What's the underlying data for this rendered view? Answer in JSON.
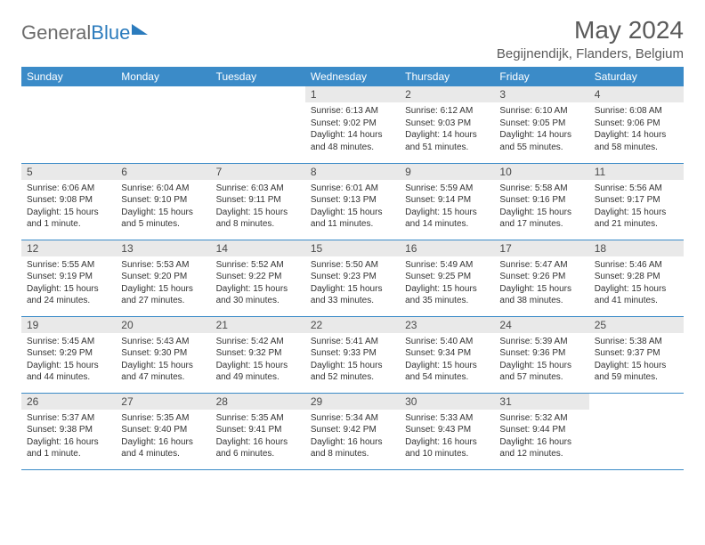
{
  "logo": {
    "part1": "General",
    "part2": "Blue"
  },
  "title": "May 2024",
  "location": "Begijnendijk, Flanders, Belgium",
  "colors": {
    "header_bg": "#3b8bc8",
    "header_text": "#ffffff",
    "daynum_bg": "#e9e9e9",
    "rule": "#3b8bc8",
    "body_text": "#333333",
    "title_text": "#5a5a5a",
    "logo_gray": "#6b6b6b",
    "logo_blue": "#2b7bbd",
    "page_bg": "#ffffff"
  },
  "weekdays": [
    "Sunday",
    "Monday",
    "Tuesday",
    "Wednesday",
    "Thursday",
    "Friday",
    "Saturday"
  ],
  "weeks": [
    [
      {
        "empty": true
      },
      {
        "empty": true
      },
      {
        "empty": true
      },
      {
        "n": "1",
        "sr": "Sunrise: 6:13 AM",
        "ss": "Sunset: 9:02 PM",
        "dl": "Daylight: 14 hours and 48 minutes."
      },
      {
        "n": "2",
        "sr": "Sunrise: 6:12 AM",
        "ss": "Sunset: 9:03 PM",
        "dl": "Daylight: 14 hours and 51 minutes."
      },
      {
        "n": "3",
        "sr": "Sunrise: 6:10 AM",
        "ss": "Sunset: 9:05 PM",
        "dl": "Daylight: 14 hours and 55 minutes."
      },
      {
        "n": "4",
        "sr": "Sunrise: 6:08 AM",
        "ss": "Sunset: 9:06 PM",
        "dl": "Daylight: 14 hours and 58 minutes."
      }
    ],
    [
      {
        "n": "5",
        "sr": "Sunrise: 6:06 AM",
        "ss": "Sunset: 9:08 PM",
        "dl": "Daylight: 15 hours and 1 minute."
      },
      {
        "n": "6",
        "sr": "Sunrise: 6:04 AM",
        "ss": "Sunset: 9:10 PM",
        "dl": "Daylight: 15 hours and 5 minutes."
      },
      {
        "n": "7",
        "sr": "Sunrise: 6:03 AM",
        "ss": "Sunset: 9:11 PM",
        "dl": "Daylight: 15 hours and 8 minutes."
      },
      {
        "n": "8",
        "sr": "Sunrise: 6:01 AM",
        "ss": "Sunset: 9:13 PM",
        "dl": "Daylight: 15 hours and 11 minutes."
      },
      {
        "n": "9",
        "sr": "Sunrise: 5:59 AM",
        "ss": "Sunset: 9:14 PM",
        "dl": "Daylight: 15 hours and 14 minutes."
      },
      {
        "n": "10",
        "sr": "Sunrise: 5:58 AM",
        "ss": "Sunset: 9:16 PM",
        "dl": "Daylight: 15 hours and 17 minutes."
      },
      {
        "n": "11",
        "sr": "Sunrise: 5:56 AM",
        "ss": "Sunset: 9:17 PM",
        "dl": "Daylight: 15 hours and 21 minutes."
      }
    ],
    [
      {
        "n": "12",
        "sr": "Sunrise: 5:55 AM",
        "ss": "Sunset: 9:19 PM",
        "dl": "Daylight: 15 hours and 24 minutes."
      },
      {
        "n": "13",
        "sr": "Sunrise: 5:53 AM",
        "ss": "Sunset: 9:20 PM",
        "dl": "Daylight: 15 hours and 27 minutes."
      },
      {
        "n": "14",
        "sr": "Sunrise: 5:52 AM",
        "ss": "Sunset: 9:22 PM",
        "dl": "Daylight: 15 hours and 30 minutes."
      },
      {
        "n": "15",
        "sr": "Sunrise: 5:50 AM",
        "ss": "Sunset: 9:23 PM",
        "dl": "Daylight: 15 hours and 33 minutes."
      },
      {
        "n": "16",
        "sr": "Sunrise: 5:49 AM",
        "ss": "Sunset: 9:25 PM",
        "dl": "Daylight: 15 hours and 35 minutes."
      },
      {
        "n": "17",
        "sr": "Sunrise: 5:47 AM",
        "ss": "Sunset: 9:26 PM",
        "dl": "Daylight: 15 hours and 38 minutes."
      },
      {
        "n": "18",
        "sr": "Sunrise: 5:46 AM",
        "ss": "Sunset: 9:28 PM",
        "dl": "Daylight: 15 hours and 41 minutes."
      }
    ],
    [
      {
        "n": "19",
        "sr": "Sunrise: 5:45 AM",
        "ss": "Sunset: 9:29 PM",
        "dl": "Daylight: 15 hours and 44 minutes."
      },
      {
        "n": "20",
        "sr": "Sunrise: 5:43 AM",
        "ss": "Sunset: 9:30 PM",
        "dl": "Daylight: 15 hours and 47 minutes."
      },
      {
        "n": "21",
        "sr": "Sunrise: 5:42 AM",
        "ss": "Sunset: 9:32 PM",
        "dl": "Daylight: 15 hours and 49 minutes."
      },
      {
        "n": "22",
        "sr": "Sunrise: 5:41 AM",
        "ss": "Sunset: 9:33 PM",
        "dl": "Daylight: 15 hours and 52 minutes."
      },
      {
        "n": "23",
        "sr": "Sunrise: 5:40 AM",
        "ss": "Sunset: 9:34 PM",
        "dl": "Daylight: 15 hours and 54 minutes."
      },
      {
        "n": "24",
        "sr": "Sunrise: 5:39 AM",
        "ss": "Sunset: 9:36 PM",
        "dl": "Daylight: 15 hours and 57 minutes."
      },
      {
        "n": "25",
        "sr": "Sunrise: 5:38 AM",
        "ss": "Sunset: 9:37 PM",
        "dl": "Daylight: 15 hours and 59 minutes."
      }
    ],
    [
      {
        "n": "26",
        "sr": "Sunrise: 5:37 AM",
        "ss": "Sunset: 9:38 PM",
        "dl": "Daylight: 16 hours and 1 minute."
      },
      {
        "n": "27",
        "sr": "Sunrise: 5:35 AM",
        "ss": "Sunset: 9:40 PM",
        "dl": "Daylight: 16 hours and 4 minutes."
      },
      {
        "n": "28",
        "sr": "Sunrise: 5:35 AM",
        "ss": "Sunset: 9:41 PM",
        "dl": "Daylight: 16 hours and 6 minutes."
      },
      {
        "n": "29",
        "sr": "Sunrise: 5:34 AM",
        "ss": "Sunset: 9:42 PM",
        "dl": "Daylight: 16 hours and 8 minutes."
      },
      {
        "n": "30",
        "sr": "Sunrise: 5:33 AM",
        "ss": "Sunset: 9:43 PM",
        "dl": "Daylight: 16 hours and 10 minutes."
      },
      {
        "n": "31",
        "sr": "Sunrise: 5:32 AM",
        "ss": "Sunset: 9:44 PM",
        "dl": "Daylight: 16 hours and 12 minutes."
      },
      {
        "empty": true
      }
    ]
  ]
}
